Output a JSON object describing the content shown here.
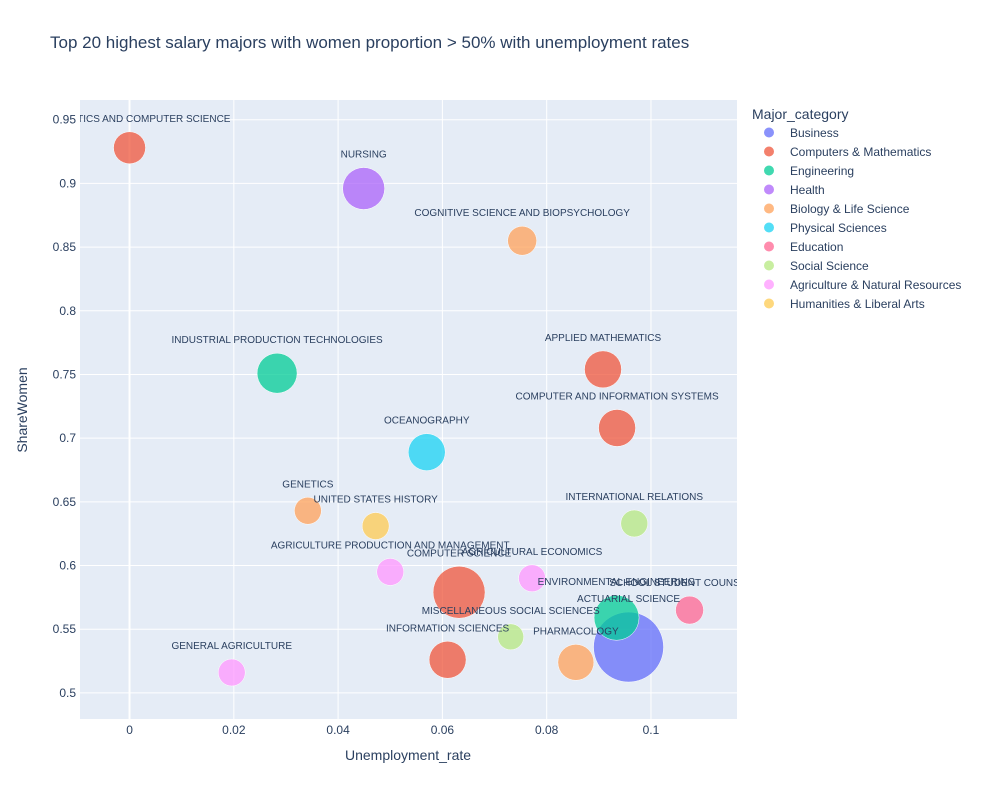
{
  "chart_data": {
    "type": "scatter",
    "title": "Top 20 highest salary majors with women proportion > 50% with unemployment rates",
    "xlabel": "Unemployment_rate",
    "ylabel": "ShareWomen",
    "xlim": [
      -0.0095,
      0.1165
    ],
    "ylim": [
      0.4795,
      0.9655
    ],
    "xticks": [
      0,
      0.02,
      0.04,
      0.06,
      0.08,
      0.1
    ],
    "xtick_labels": [
      "0",
      "0.02",
      "0.04",
      "0.06",
      "0.08",
      "0.1"
    ],
    "yticks": [
      0.5,
      0.55,
      0.6,
      0.65,
      0.7,
      0.75,
      0.8,
      0.85,
      0.9,
      0.95
    ],
    "ytick_labels": [
      "0.5",
      "0.55",
      "0.6",
      "0.65",
      "0.7",
      "0.75",
      "0.8",
      "0.85",
      "0.9",
      "0.95"
    ],
    "grid": true,
    "legend_title": "Major_category",
    "legend_position": "right",
    "categories": [
      {
        "name": "Business",
        "color": "#636efa"
      },
      {
        "name": "Computers & Mathematics",
        "color": "#ef553b"
      },
      {
        "name": "Engineering",
        "color": "#00cc96"
      },
      {
        "name": "Health",
        "color": "#ab63fa"
      },
      {
        "name": "Biology & Life Science",
        "color": "#ffa15a"
      },
      {
        "name": "Physical Sciences",
        "color": "#19d3f3"
      },
      {
        "name": "Education",
        "color": "#ff6692"
      },
      {
        "name": "Social Science",
        "color": "#b6e880"
      },
      {
        "name": "Agriculture & Natural Resources",
        "color": "#ff97ff"
      },
      {
        "name": "Humanities & Liberal Arts",
        "color": "#fecb52"
      }
    ],
    "points": [
      {
        "label": "MATHEMATICS AND COMPUTER SCIENCE",
        "category": "Computers & Mathematics",
        "x": 0.0,
        "y": 0.928,
        "size": 16
      },
      {
        "label": "NURSING",
        "category": "Health",
        "x": 0.0449,
        "y": 0.896,
        "size": 21
      },
      {
        "label": "COGNITIVE SCIENCE AND BIOPSYCHOLOGY",
        "category": "Biology & Life Science",
        "x": 0.0753,
        "y": 0.855,
        "size": 14.5
      },
      {
        "label": "INDUSTRIAL PRODUCTION TECHNOLOGIES",
        "category": "Engineering",
        "x": 0.0283,
        "y": 0.751,
        "size": 20
      },
      {
        "label": "APPLIED MATHEMATICS",
        "category": "Computers & Mathematics",
        "x": 0.0908,
        "y": 0.754,
        "size": 18.5
      },
      {
        "label": "COMPUTER AND INFORMATION SYSTEMS",
        "category": "Computers & Mathematics",
        "x": 0.0935,
        "y": 0.708,
        "size": 18.5
      },
      {
        "label": "OCEANOGRAPHY",
        "category": "Physical Sciences",
        "x": 0.057,
        "y": 0.689,
        "size": 18.5
      },
      {
        "label": "GENETICS",
        "category": "Biology & Life Science",
        "x": 0.0342,
        "y": 0.643,
        "size": 13.5
      },
      {
        "label": "UNITED STATES HISTORY",
        "category": "Humanities & Liberal Arts",
        "x": 0.0472,
        "y": 0.631,
        "size": 13.5
      },
      {
        "label": "INTERNATIONAL RELATIONS",
        "category": "Social Science",
        "x": 0.0968,
        "y": 0.633,
        "size": 13.5
      },
      {
        "label": "AGRICULTURE PRODUCTION AND MANAGEMENT",
        "category": "Agriculture & Natural Resources",
        "x": 0.05,
        "y": 0.595,
        "size": 13.5
      },
      {
        "label": "COMPUTER SCIENCE",
        "category": "Computers & Mathematics",
        "x": 0.0632,
        "y": 0.579,
        "size": 26
      },
      {
        "label": "AGRICULTURAL ECONOMICS",
        "category": "Agriculture & Natural Resources",
        "x": 0.0772,
        "y": 0.59,
        "size": 13.5
      },
      {
        "label": "ENVIRONMENTAL ENGINEERING",
        "category": "Engineering",
        "x": 0.0934,
        "y": 0.559,
        "size": 22.5
      },
      {
        "label": "SCHOOL STUDENT COUNSELING",
        "category": "Education",
        "x": 0.1074,
        "y": 0.565,
        "size": 14
      },
      {
        "label": "ACTUARIAL SCIENCE",
        "category": "Business",
        "x": 0.0957,
        "y": 0.536,
        "size": 35
      },
      {
        "label": "MISCELLANEOUS SOCIAL SCIENCES",
        "category": "Social Science",
        "x": 0.0731,
        "y": 0.544,
        "size": 13
      },
      {
        "label": "INFORMATION SCIENCES",
        "category": "Computers & Mathematics",
        "x": 0.061,
        "y": 0.526,
        "size": 18.5
      },
      {
        "label": "PHARMACOLOGY",
        "category": "Biology & Life Science",
        "x": 0.0856,
        "y": 0.524,
        "size": 18
      },
      {
        "label": "GENERAL AGRICULTURE",
        "category": "Agriculture & Natural Resources",
        "x": 0.0196,
        "y": 0.516,
        "size": 13.5
      }
    ]
  }
}
